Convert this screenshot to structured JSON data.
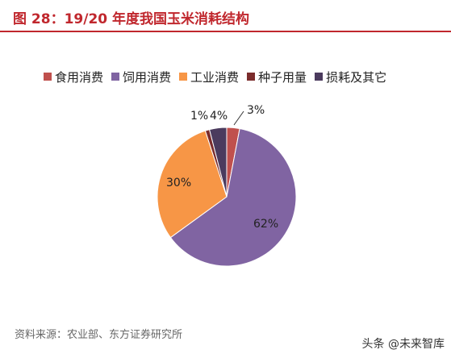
{
  "header": {
    "title": "图 28：19/20 年度我国玉米消耗结构"
  },
  "chart_data": {
    "type": "pie",
    "title": "",
    "categories": [
      "食用消费",
      "饲用消费",
      "工业消费",
      "种子用量",
      "损耗及其它"
    ],
    "values": [
      3,
      62,
      30,
      1,
      4
    ],
    "labels": [
      "3%",
      "62%",
      "30%",
      "1%",
      "4%"
    ],
    "colors": [
      "#c0504d",
      "#8064a2",
      "#f79646",
      "#7b2c2c",
      "#4b3b5e"
    ],
    "legend_position": "top"
  },
  "footer": {
    "source": "资料来源：农业部、东方证券研究所",
    "watermark": "头条 @未来智库"
  }
}
